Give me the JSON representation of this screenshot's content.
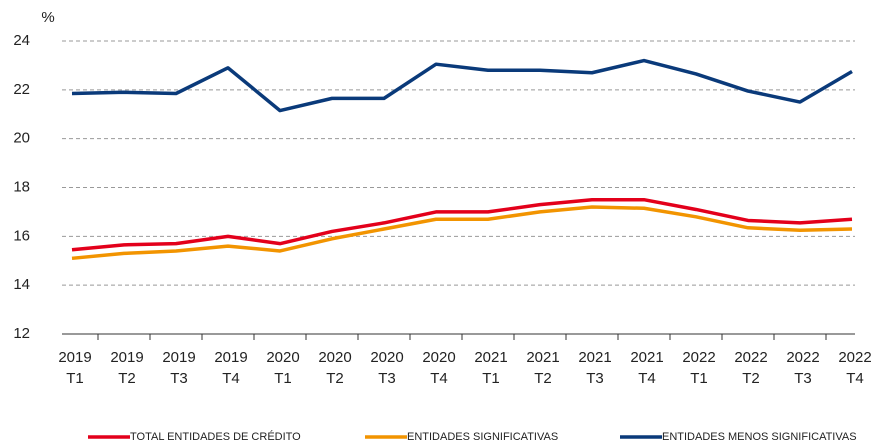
{
  "chart_data": {
    "type": "line",
    "y_label": "%",
    "categories": [
      "2019 T1",
      "2019 T2",
      "2019 T3",
      "2019 T4",
      "2020 T1",
      "2020 T2",
      "2020 T3",
      "2020 T4",
      "2021 T1",
      "2021 T2",
      "2021 T3",
      "2021 T4",
      "2022 T1",
      "2022 T2",
      "2022 T3",
      "2022 T4"
    ],
    "series": [
      {
        "name": "TOTAL ENTIDADES DE CRÉDITO",
        "color": "#e3001b",
        "values": [
          15.45,
          15.65,
          15.7,
          16.0,
          15.7,
          16.2,
          16.55,
          17.0,
          17.0,
          17.3,
          17.5,
          17.5,
          17.1,
          16.65,
          16.55,
          16.7
        ]
      },
      {
        "name": "ENTIDADES SIGNIFICATIVAS",
        "color": "#f29400",
        "values": [
          15.1,
          15.3,
          15.4,
          15.6,
          15.4,
          15.9,
          16.3,
          16.7,
          16.7,
          17.0,
          17.2,
          17.15,
          16.8,
          16.35,
          16.25,
          16.3
        ]
      },
      {
        "name": "ENTIDADES MENOS SIGNIFICATIVAS",
        "color": "#0a3a7a",
        "values": [
          21.85,
          21.9,
          21.85,
          22.9,
          21.15,
          21.65,
          21.65,
          23.05,
          22.8,
          22.8,
          22.7,
          23.2,
          22.65,
          21.95,
          21.5,
          22.75
        ]
      }
    ],
    "ylim": [
      12,
      24
    ],
    "yticks": [
      12,
      14,
      16,
      18,
      20,
      22,
      24
    ],
    "grid": true
  }
}
